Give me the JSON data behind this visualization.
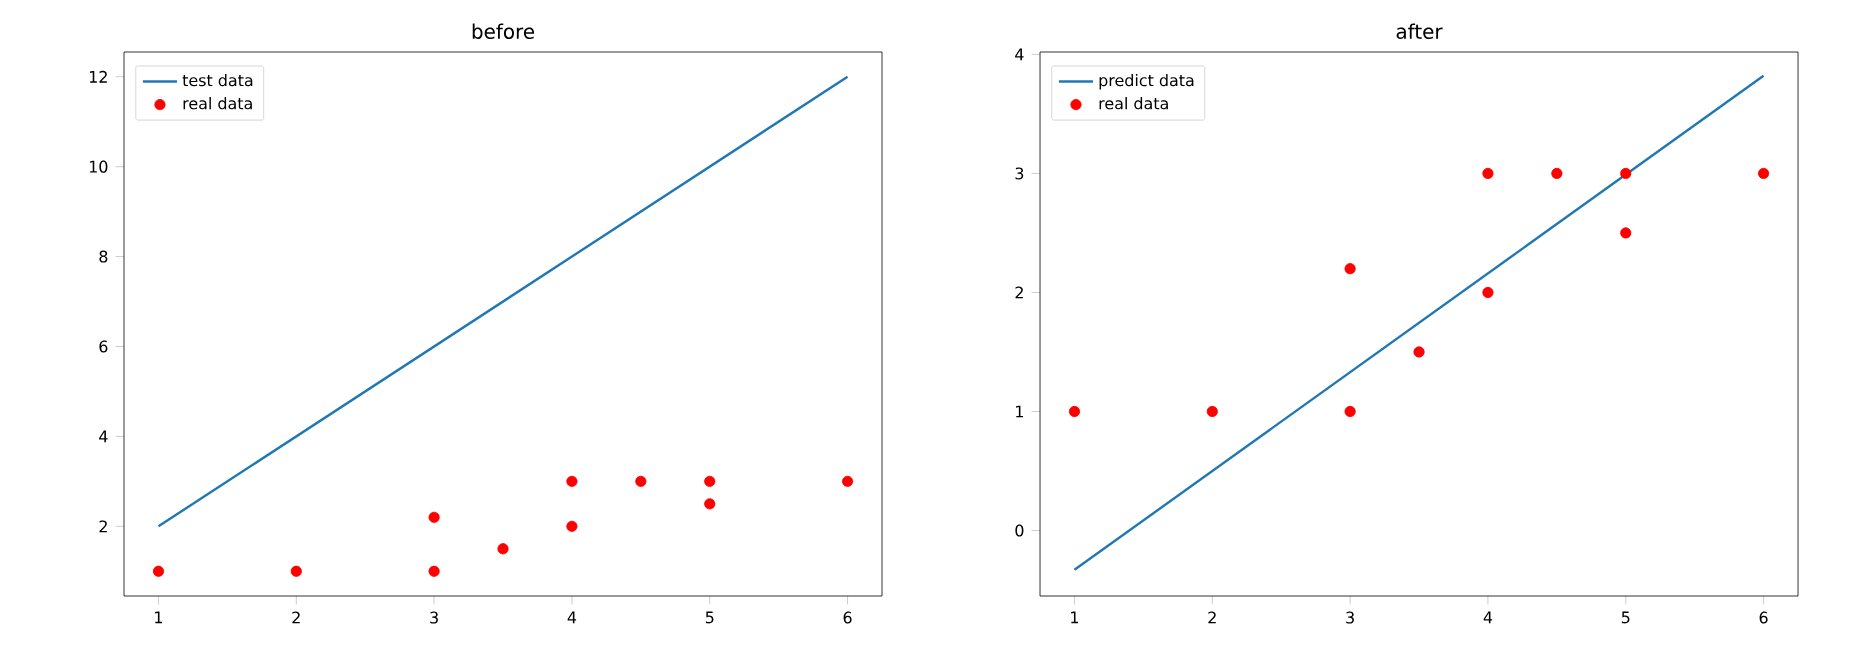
{
  "chart_data": [
    {
      "type": "line",
      "title": "before",
      "legend": "top left",
      "xlim": [
        0.75,
        6.25
      ],
      "ylim": [
        0.45,
        12.55
      ],
      "xticks": [
        1,
        2,
        3,
        4,
        5,
        6
      ],
      "yticks": [
        2,
        4,
        6,
        8,
        10,
        12
      ],
      "series": [
        {
          "name": "test data",
          "color": "#1f77b4",
          "x": [
            1,
            6
          ],
          "values": [
            2,
            12
          ]
        },
        {
          "name": "real data",
          "type": "scatter",
          "marker": "circle",
          "color": "#ff0000",
          "x": [
            1,
            2,
            3,
            3,
            3.5,
            4,
            4,
            4.5,
            5,
            5,
            6
          ],
          "values": [
            1,
            1,
            2.2,
            1,
            1.5,
            3,
            2,
            3,
            3,
            2.5,
            3
          ]
        }
      ]
    },
    {
      "type": "line",
      "title": "after",
      "legend": "top left",
      "xlim": [
        0.75,
        6.25
      ],
      "ylim": [
        -0.55,
        4.02
      ],
      "xticks": [
        1,
        2,
        3,
        4,
        5,
        6
      ],
      "yticks": [
        0,
        1,
        2,
        3,
        4
      ],
      "series": [
        {
          "name": "predict data",
          "color": "#1f77b4",
          "x": [
            1,
            6
          ],
          "values": [
            -0.33,
            3.82
          ]
        },
        {
          "name": "real data",
          "type": "scatter",
          "marker": "circle",
          "color": "#ff0000",
          "x": [
            1,
            2,
            3,
            3,
            3.5,
            4,
            4,
            4.5,
            5,
            5,
            6
          ],
          "values": [
            1,
            1,
            2.2,
            1,
            1.5,
            3,
            2,
            3,
            3,
            2.5,
            3
          ]
        }
      ]
    }
  ]
}
